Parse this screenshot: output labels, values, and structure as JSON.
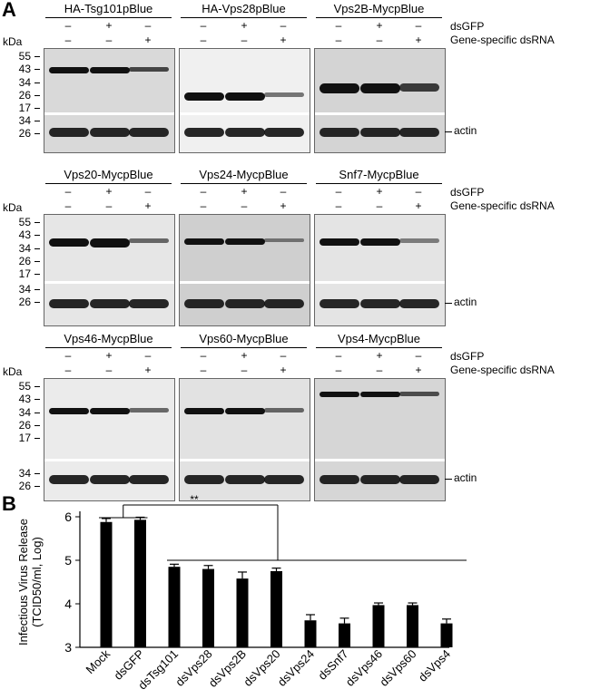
{
  "panel_a": {
    "letter": "A",
    "rows": [
      {
        "titles": [
          "HA-Tsg101pBlue",
          "HA-Vps28pBlue",
          "Vps2B-MycpBlue"
        ],
        "markers": [
          "55",
          "43",
          "34",
          "26",
          "17",
          "34",
          "26"
        ],
        "bg": [
          "#d9d9d9",
          "#f0f0f0",
          "#d4d4d4"
        ]
      },
      {
        "titles": [
          "Vps20-MycpBlue",
          "Vps24-MycpBlue",
          "Snf7-MycpBlue"
        ],
        "markers": [
          "55",
          "43",
          "34",
          "26",
          "17",
          "34",
          "26"
        ],
        "bg": [
          "#e6e6e6",
          "#cfcfcf",
          "#e4e4e4"
        ]
      },
      {
        "titles": [
          "Vps46-MycpBlue",
          "Vps60-MycpBlue",
          "Vps4-MycpBlue"
        ],
        "markers": [
          "55",
          "43",
          "34",
          "26",
          "17",
          "34",
          "26"
        ],
        "bg": [
          "#ebebeb",
          "#e2e2e2",
          "#d6d6d6"
        ]
      }
    ],
    "kda_label": "kDa",
    "dsgfp_label": "dsGFP",
    "dsrna_label": "Gene-specific dsRNA",
    "dsgfp_signs": [
      "–",
      "+",
      "–"
    ],
    "dsrna_signs": [
      "–",
      "–",
      "+"
    ],
    "actin_label": "actin"
  },
  "panel_b": {
    "letter": "B",
    "significance": "**",
    "chart_data": {
      "type": "bar",
      "categories": [
        "Mock",
        "dsGFP",
        "dsTsg101",
        "dsVps28",
        "dsVps2B",
        "dsVps20",
        "dsVps24",
        "dsSnf7",
        "dsVps46",
        "dsVps60",
        "dsVps4"
      ],
      "values": [
        5.88,
        5.93,
        4.85,
        4.8,
        4.58,
        4.75,
        3.62,
        3.55,
        3.97,
        3.97,
        3.55
      ],
      "errors": [
        0.08,
        0.06,
        0.06,
        0.08,
        0.15,
        0.07,
        0.13,
        0.12,
        0.05,
        0.05,
        0.1
      ],
      "ylabel": "Infectious Virus Release (TCID50/ml, Log)",
      "ylabel_line1": "Infectious Virus Release",
      "ylabel_line2": "(TCID50/ml, Log)",
      "ylim": [
        3,
        6
      ],
      "yticks": [
        "3",
        "4",
        "5",
        "6"
      ],
      "bar_color": "#000000"
    }
  }
}
